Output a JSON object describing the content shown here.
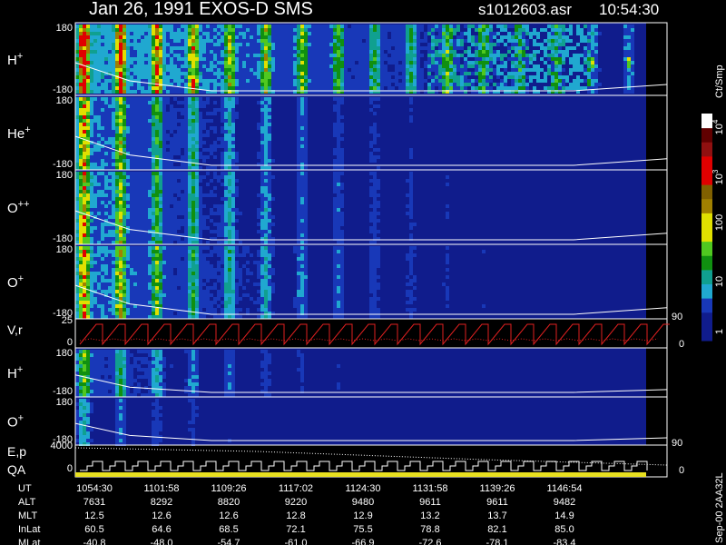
{
  "header": {
    "title": "Jan 26, 1991   EXOS-D SMS",
    "file": "s1012603.asr",
    "time": "10:54:30"
  },
  "panels": [
    {
      "ion": "H",
      "charge": "+",
      "ticks": [
        "180",
        "-180"
      ]
    },
    {
      "ion": "He",
      "charge": "+",
      "ticks": [
        "180",
        "-180"
      ]
    },
    {
      "ion": "O",
      "charge": "++",
      "ticks": [
        "180",
        "-180"
      ]
    },
    {
      "ion": "O",
      "charge": "+",
      "ticks": [
        "180",
        "-180"
      ]
    },
    {
      "ion": "H",
      "charge": "+",
      "ticks": [
        "180",
        "-180"
      ]
    },
    {
      "ion": "O",
      "charge": "+",
      "ticks": [
        "180",
        "-180"
      ]
    }
  ],
  "vr": {
    "label": "V,r",
    "ticks": [
      "25",
      "0"
    ],
    "right_ticks": [
      "90",
      "0"
    ]
  },
  "ep": {
    "label": "E,p",
    "label2": "QA",
    "ticks": [
      "4000",
      "0"
    ],
    "right_ticks": [
      "90",
      "0"
    ]
  },
  "colorbar": {
    "unit": "Ct/Smp",
    "ticks": [
      {
        "base": "10",
        "exp": "4"
      },
      {
        "base": "10",
        "exp": "3"
      },
      "100",
      "10",
      "1"
    ]
  },
  "footer": "Sep-00  2AA32L",
  "table": {
    "rows": [
      {
        "label": "UT",
        "values": [
          "1054:30",
          "1101:58",
          "1109:26",
          "1117:02",
          "1124:30",
          "1131:58",
          "1139:26",
          "1146:54"
        ]
      },
      {
        "label": "ALT",
        "values": [
          "7631",
          "8292",
          "8820",
          "9220",
          "9480",
          "9611",
          "9611",
          "9482"
        ]
      },
      {
        "label": "MLT",
        "values": [
          "12.5",
          "12.6",
          "12.6",
          "12.8",
          "12.9",
          "13.2",
          "13.7",
          "14.9"
        ]
      },
      {
        "label": "InLat",
        "values": [
          "60.5",
          "64.6",
          "68.5",
          "72.1",
          "75.5",
          "78.8",
          "82.1",
          "85.0"
        ]
      },
      {
        "label": "MLat",
        "values": [
          "-40.8",
          "-48.0",
          "-54.7",
          "-61.0",
          "-66.9",
          "-72.6",
          "-78.1",
          "-83.4"
        ]
      }
    ]
  }
}
